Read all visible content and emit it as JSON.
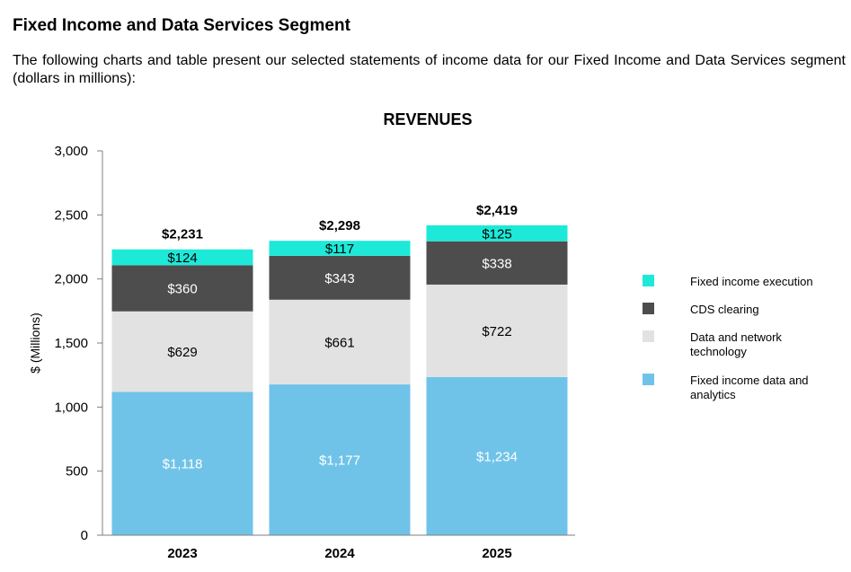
{
  "page": {
    "heading": "Fixed Income and Data Services Segment",
    "intro": "The following charts and table present our selected statements of income data for our Fixed Income and Data Services segment (dollars in millions):"
  },
  "chart_data": {
    "type": "bar",
    "stacked": true,
    "title": "REVENUES",
    "xlabel": "",
    "ylabel": "$ (Millions)",
    "ylim": [
      0,
      3000
    ],
    "yticks": [
      0,
      500,
      1000,
      1500,
      2000,
      2500,
      3000
    ],
    "ytick_labels": [
      "0",
      "500",
      "1,000",
      "1,500",
      "2,000",
      "2,500",
      "3,000"
    ],
    "grid": false,
    "legend_position": "right",
    "categories": [
      "2023",
      "2024",
      "2025"
    ],
    "totals": [
      2231,
      2298,
      2419
    ],
    "total_labels": [
      "$2,231",
      "$2,298",
      "$2,419"
    ],
    "series": [
      {
        "name": "Fixed income data and analytics",
        "color": "#70c3e8",
        "label_color": "#ffffff",
        "values": [
          1118,
          1177,
          1234
        ],
        "labels": [
          "$1,118",
          "$1,177",
          "$1,234"
        ]
      },
      {
        "name": "Data and network technology",
        "color": "#e2e2e2",
        "label_color": "#000000",
        "values": [
          629,
          661,
          722
        ],
        "labels": [
          "$629",
          "$661",
          "$722"
        ]
      },
      {
        "name": "CDS clearing",
        "color": "#4d4d4d",
        "label_color": "#ffffff",
        "values": [
          360,
          343,
          338
        ],
        "labels": [
          "$360",
          "$343",
          "$338"
        ]
      },
      {
        "name": "Fixed income execution",
        "color": "#1de9d9",
        "label_color": "#000000",
        "values": [
          124,
          117,
          125
        ],
        "labels": [
          "$124",
          "$117",
          "$125"
        ]
      }
    ],
    "legend": [
      {
        "lines": [
          "Fixed income execution"
        ],
        "color": "#1de9d9"
      },
      {
        "lines": [
          "CDS clearing"
        ],
        "color": "#4d4d4d"
      },
      {
        "lines": [
          "Data and network",
          "technology"
        ],
        "color": "#e2e2e2"
      },
      {
        "lines": [
          "Fixed income data and",
          "analytics"
        ],
        "color": "#70c3e8"
      }
    ]
  }
}
